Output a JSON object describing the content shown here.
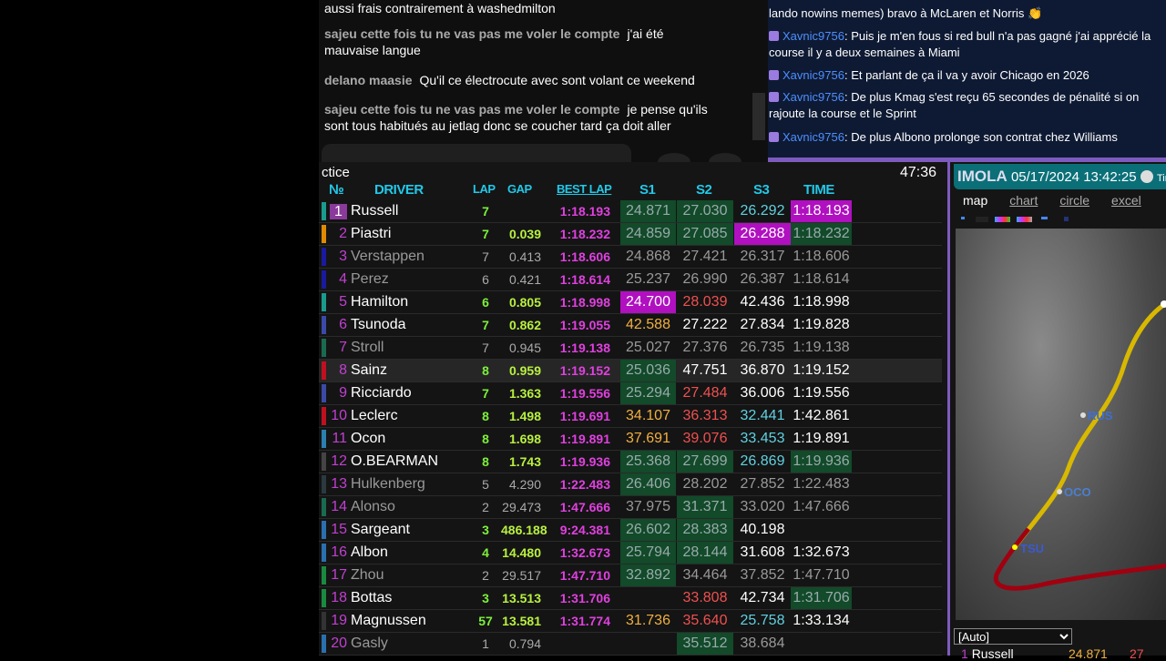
{
  "youtube_chat": [
    {
      "author": "",
      "text": "aussi frais contrairement à washedmilton"
    },
    {
      "author": "sajeu cette fois tu ne vas pas me voler le compte",
      "text": "j'ai été mauvaise langue"
    },
    {
      "author": "delano maasie",
      "text": "Qu'il ce électrocute avec sont volant ce weekend"
    },
    {
      "author": "sajeu cette fois tu ne vas pas me voler le compte",
      "text": "je pense qu'ils sont tous habitués au jetlag donc se coucher tard ça doit aller"
    }
  ],
  "twitch_chat": [
    {
      "user": "",
      "text": "lando nowins memes) bravo à McLaren et Norris 👏"
    },
    {
      "user": "Xavnic9756",
      "text": "Puis je m'en fous si red bull n'a pas gagné j'ai apprécié la course il y a deux semaines à Miami"
    },
    {
      "user": "Xavnic9756",
      "text": "Et parlant de ça il va y avoir Chicago en 2026"
    },
    {
      "user": "Xavnic9756",
      "text": "De plus Kmag s'est reçu 65 secondes de pénalité si on rajoute la course et le Sprint"
    },
    {
      "user": "Xavnic9756",
      "text": "De plus Albono prolonge son contrat chez Williams"
    }
  ],
  "timing": {
    "session": "ctice",
    "clock": "47:36",
    "headers": {
      "no": "№",
      "driver": "DRIVER",
      "lap": "LAP",
      "gap": "GAP",
      "best": "BEST LAP",
      "s1": "S1",
      "s2": "S2",
      "s3": "S3",
      "time": "TIME"
    },
    "rows": [
      {
        "no": "1",
        "driver": "Russell",
        "team": "#1a9c8c",
        "lap": "7",
        "gap": "",
        "best": "1:18.193",
        "s1": [
          "24.871",
          "g"
        ],
        "s2": [
          "27.030",
          "g"
        ],
        "s3": [
          "26.292",
          "c"
        ],
        "time": [
          "1:18.193",
          "p"
        ]
      },
      {
        "no": "2",
        "driver": "Piastri",
        "team": "#e08a00",
        "lap": "7",
        "gap": "0.039",
        "best": "1:18.232",
        "s1": [
          "24.859",
          "g"
        ],
        "s2": [
          "27.085",
          "g"
        ],
        "s3": [
          "26.288",
          "p"
        ],
        "time": [
          "1:18.232",
          "g"
        ]
      },
      {
        "no": "3",
        "driver": "Verstappen",
        "team": "#1a1aa0",
        "dim": true,
        "lap": "7",
        "gap": "0.413",
        "best": "1:18.606",
        "s1": [
          "24.868",
          "d"
        ],
        "s2": [
          "27.421",
          "d"
        ],
        "s3": [
          "26.317",
          "d"
        ],
        "time": [
          "1:18.606",
          "d"
        ]
      },
      {
        "no": "4",
        "driver": "Perez",
        "team": "#1a1aa0",
        "dim": true,
        "lap": "6",
        "gap": "0.421",
        "best": "1:18.614",
        "s1": [
          "25.237",
          "d"
        ],
        "s2": [
          "26.990",
          "d"
        ],
        "s3": [
          "26.387",
          "d"
        ],
        "time": [
          "1:18.614",
          "d"
        ]
      },
      {
        "no": "5",
        "driver": "Hamilton",
        "team": "#1a9c8c",
        "lap": "6",
        "gap": "0.805",
        "best": "1:18.998",
        "s1": [
          "24.700",
          "p"
        ],
        "s2": [
          "28.039",
          "r"
        ],
        "s3": [
          "42.436",
          "w"
        ],
        "time": [
          "1:18.998",
          "w"
        ]
      },
      {
        "no": "6",
        "driver": "Tsunoda",
        "team": "#3a4aa8",
        "lap": "7",
        "gap": "0.862",
        "best": "1:19.055",
        "s1": [
          "42.588",
          "y"
        ],
        "s2": [
          "27.222",
          "w"
        ],
        "s3": [
          "27.834",
          "w"
        ],
        "time": [
          "1:19.828",
          "w"
        ]
      },
      {
        "no": "7",
        "driver": "Stroll",
        "team": "#1a6a50",
        "dim": true,
        "lap": "7",
        "gap": "0.945",
        "best": "1:19.138",
        "s1": [
          "25.027",
          "d"
        ],
        "s2": [
          "27.376",
          "d"
        ],
        "s3": [
          "26.735",
          "d"
        ],
        "time": [
          "1:19.138",
          "d"
        ]
      },
      {
        "no": "8",
        "driver": "Sainz",
        "team": "#c01020",
        "highlight": true,
        "lap": "8",
        "gap": "0.959",
        "best": "1:19.152",
        "s1": [
          "25.036",
          "g"
        ],
        "s2": [
          "47.751",
          "w"
        ],
        "s3": [
          "36.870",
          "w"
        ],
        "time": [
          "1:19.152",
          "w"
        ]
      },
      {
        "no": "9",
        "driver": "Ricciardo",
        "team": "#3a4aa8",
        "lap": "7",
        "gap": "1.363",
        "best": "1:19.556",
        "s1": [
          "25.294",
          "g"
        ],
        "s2": [
          "27.484",
          "r"
        ],
        "s3": [
          "36.006",
          "w"
        ],
        "time": [
          "1:19.556",
          "w"
        ]
      },
      {
        "no": "10",
        "driver": "Leclerc",
        "team": "#c01020",
        "lap": "8",
        "gap": "1.498",
        "best": "1:19.691",
        "s1": [
          "34.107",
          "y"
        ],
        "s2": [
          "36.313",
          "r"
        ],
        "s3": [
          "32.441",
          "c"
        ],
        "time": [
          "1:42.861",
          "w"
        ]
      },
      {
        "no": "11",
        "driver": "Ocon",
        "team": "#2a80b0",
        "lap": "8",
        "gap": "1.698",
        "best": "1:19.891",
        "s1": [
          "37.691",
          "y"
        ],
        "s2": [
          "39.076",
          "r"
        ],
        "s3": [
          "33.453",
          "c"
        ],
        "time": [
          "1:19.891",
          "w"
        ]
      },
      {
        "no": "12",
        "driver": "O.BEARMAN",
        "team": "#444444",
        "lap": "8",
        "gap": "1.743",
        "best": "1:19.936",
        "s1": [
          "25.368",
          "g"
        ],
        "s2": [
          "27.699",
          "g"
        ],
        "s3": [
          "26.869",
          "c"
        ],
        "time": [
          "1:19.936",
          "g"
        ]
      },
      {
        "no": "13",
        "driver": "Hulkenberg",
        "team": "#2a3a40",
        "dim": true,
        "lap": "5",
        "gap": "4.290",
        "best": "1:22.483",
        "s1": [
          "26.406",
          "g"
        ],
        "s2": [
          "28.202",
          "d"
        ],
        "s3": [
          "27.852",
          "d"
        ],
        "time": [
          "1:22.483",
          "d"
        ]
      },
      {
        "no": "14",
        "driver": "Alonso",
        "team": "#1a6a50",
        "dim": true,
        "lap": "2",
        "gap": "29.473",
        "best": "1:47.666",
        "s1": [
          "37.975",
          "d"
        ],
        "s2": [
          "31.371",
          "g"
        ],
        "s3": [
          "33.020",
          "d"
        ],
        "time": [
          "1:47.666",
          "d"
        ]
      },
      {
        "no": "15",
        "driver": "Sargeant",
        "team": "#2a70b0",
        "lap": "3",
        "gap": "486.188",
        "best": "9:24.381",
        "s1": [
          "26.602",
          "g"
        ],
        "s2": [
          "28.383",
          "g"
        ],
        "s3": [
          "40.198",
          "w"
        ],
        "time": [
          "",
          ""
        ]
      },
      {
        "no": "16",
        "driver": "Albon",
        "team": "#2a70b0",
        "lap": "4",
        "gap": "14.480",
        "best": "1:32.673",
        "s1": [
          "25.794",
          "g"
        ],
        "s2": [
          "28.144",
          "g"
        ],
        "s3": [
          "31.608",
          "w"
        ],
        "time": [
          "1:32.673",
          "w"
        ]
      },
      {
        "no": "17",
        "driver": "Zhou",
        "team": "#1a8a40",
        "dim": true,
        "lap": "2",
        "gap": "29.517",
        "best": "1:47.710",
        "s1": [
          "32.892",
          "g"
        ],
        "s2": [
          "34.464",
          "d"
        ],
        "s3": [
          "37.852",
          "d"
        ],
        "time": [
          "1:47.710",
          "d"
        ]
      },
      {
        "no": "18",
        "driver": "Bottas",
        "team": "#1a8a40",
        "lap": "3",
        "gap": "13.513",
        "best": "1:31.706",
        "s1": [
          "",
          ""
        ],
        "s2": [
          "33.808",
          "r"
        ],
        "s3": [
          "42.734",
          "w"
        ],
        "time": [
          "1:31.706",
          "g"
        ]
      },
      {
        "no": "19",
        "driver": "Magnussen",
        "team": "#333333",
        "lap": "57",
        "gap": "13.581",
        "best": "1:31.774",
        "s1": [
          "31.736",
          "y"
        ],
        "s2": [
          "35.640",
          "r"
        ],
        "s3": [
          "25.758",
          "c"
        ],
        "time": [
          "1:33.134",
          "w"
        ]
      },
      {
        "no": "20",
        "driver": "Gasly",
        "team": "#2a70b0",
        "dim": true,
        "lap": "1",
        "gap": "0.794",
        "best": "",
        "s1": [
          "",
          ""
        ],
        "s2": [
          "35.512",
          "g"
        ],
        "s3": [
          "38.684",
          "d"
        ],
        "time": [
          "",
          ""
        ]
      }
    ]
  },
  "panel": {
    "track": "IMOLA",
    "datetime": "05/17/2024 13:42:25",
    "timer_label": "Tim",
    "tabs": [
      "map",
      "chart",
      "circle",
      "excel"
    ],
    "active_tab": "map",
    "map_labels": [
      "RUS",
      "OCO",
      "TSU"
    ],
    "select": "[Auto]",
    "bottom": {
      "pos": "1",
      "driver": "Russell",
      "s1": "24.871",
      "s2": "27"
    }
  }
}
